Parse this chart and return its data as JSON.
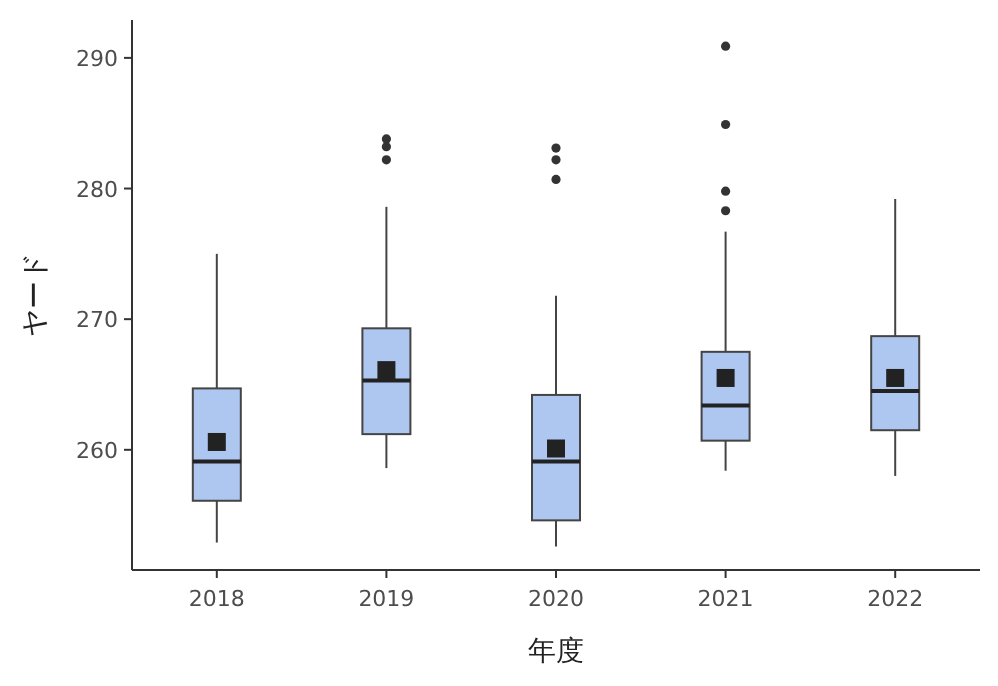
{
  "chart_data": {
    "type": "box",
    "xlabel": "年度",
    "ylabel": "ヤード",
    "categories": [
      "2018",
      "2019",
      "2020",
      "2021",
      "2022"
    ],
    "ylim": [
      250.8,
      292.9
    ],
    "yticks": [
      260,
      270,
      280,
      290
    ],
    "grid": false,
    "color": "#aec7f0",
    "boxes": [
      {
        "low": 252.9,
        "q1": 256.1,
        "median": 259.1,
        "q3": 264.7,
        "high": 275.0,
        "mean": 260.6
      },
      {
        "low": 258.6,
        "q1": 261.2,
        "median": 265.3,
        "q3": 269.3,
        "high": 278.6,
        "mean": 266.1,
        "outliers": [
          282.2,
          283.2,
          283.8
        ]
      },
      {
        "low": 252.6,
        "q1": 254.6,
        "median": 259.1,
        "q3": 264.2,
        "high": 271.8,
        "mean": 260.1,
        "outliers": [
          280.7,
          282.2,
          283.1
        ]
      },
      {
        "low": 258.4,
        "q1": 260.7,
        "median": 263.4,
        "q3": 267.5,
        "high": 276.7,
        "mean": 265.5,
        "outliers": [
          278.3,
          279.8,
          284.9,
          290.9
        ]
      },
      {
        "low": 258.0,
        "q1": 261.5,
        "median": 264.5,
        "q3": 268.7,
        "high": 279.2,
        "mean": 265.5
      }
    ]
  }
}
